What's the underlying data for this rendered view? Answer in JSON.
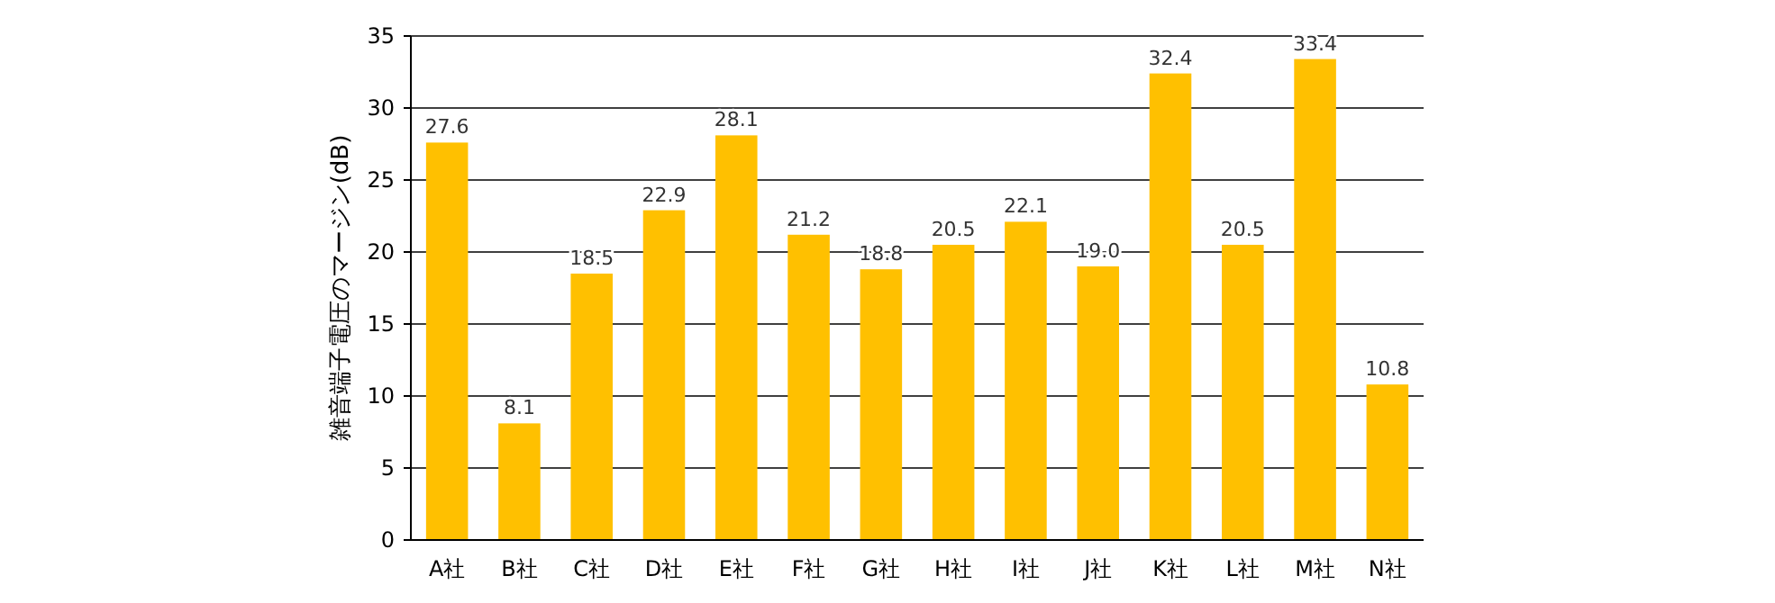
{
  "chart_data": {
    "type": "bar",
    "ylabel": "雑音端子電圧のマージン(dB)",
    "categories": [
      "A社",
      "B社",
      "C社",
      "D社",
      "E社",
      "F社",
      "G社",
      "H社",
      "I社",
      "J社",
      "K社",
      "L社",
      "M社",
      "N社"
    ],
    "values": [
      27.6,
      8.1,
      18.5,
      22.9,
      28.1,
      21.2,
      18.8,
      20.5,
      22.1,
      19.0,
      32.4,
      20.5,
      33.4,
      10.8
    ],
    "value_labels": [
      "27.6",
      "8.1",
      "18.5",
      "22.9",
      "28.1",
      "21.2",
      "18.8",
      "20.5",
      "22.1",
      "19.0",
      "32.4",
      "20.5",
      "33.4",
      "10.8"
    ],
    "color": "#ffc000",
    "ylim": [
      0,
      35
    ],
    "yticks": [
      0,
      5,
      10,
      15,
      20,
      25,
      30,
      35
    ],
    "grid": "y"
  }
}
